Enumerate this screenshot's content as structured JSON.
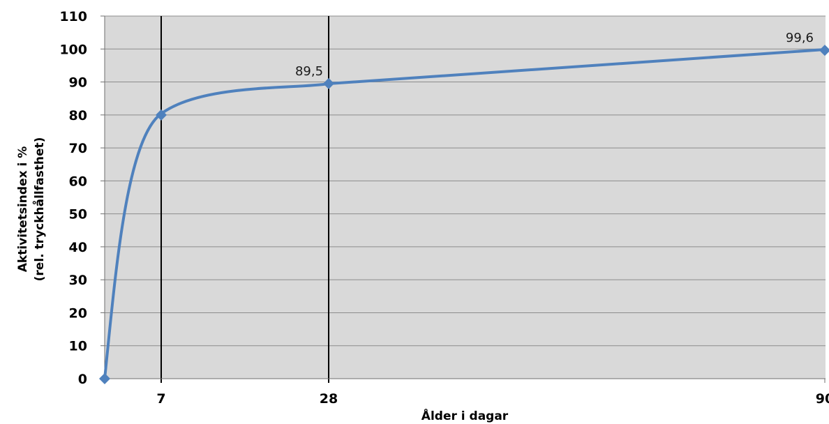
{
  "chart_data": {
    "type": "line",
    "x": [
      0,
      7,
      28,
      90
    ],
    "y": [
      0,
      80,
      89.5,
      99.6
    ],
    "xticks": [
      "7",
      "28",
      "90"
    ],
    "xtick_values": [
      7,
      28,
      90
    ],
    "yticks": [
      "0",
      "10",
      "20",
      "30",
      "40",
      "50",
      "60",
      "70",
      "80",
      "90",
      "100",
      "110"
    ],
    "ylim": [
      0,
      110
    ],
    "xlim": [
      0,
      90
    ],
    "x_scale": "non-uniform",
    "xlabel": "Ålder i dagar",
    "ylabel_line1": "Aktivitetsindex i %",
    "ylabel_line2": "(rel. tryckhållfasthet)",
    "data_labels": [
      {
        "x": 28,
        "y": 89.5,
        "text": "89,5"
      },
      {
        "x": 90,
        "y": 99.6,
        "text": "99,6"
      }
    ],
    "smooth": true,
    "grid": "horizontal",
    "vertical_reference_lines_at": [
      7,
      28
    ],
    "marker": "diamond",
    "colors": {
      "series": "#4f81bd",
      "plot_background": "#d9d9d9",
      "gridline": "#8c8c8c",
      "reference_line": "#000000"
    }
  }
}
